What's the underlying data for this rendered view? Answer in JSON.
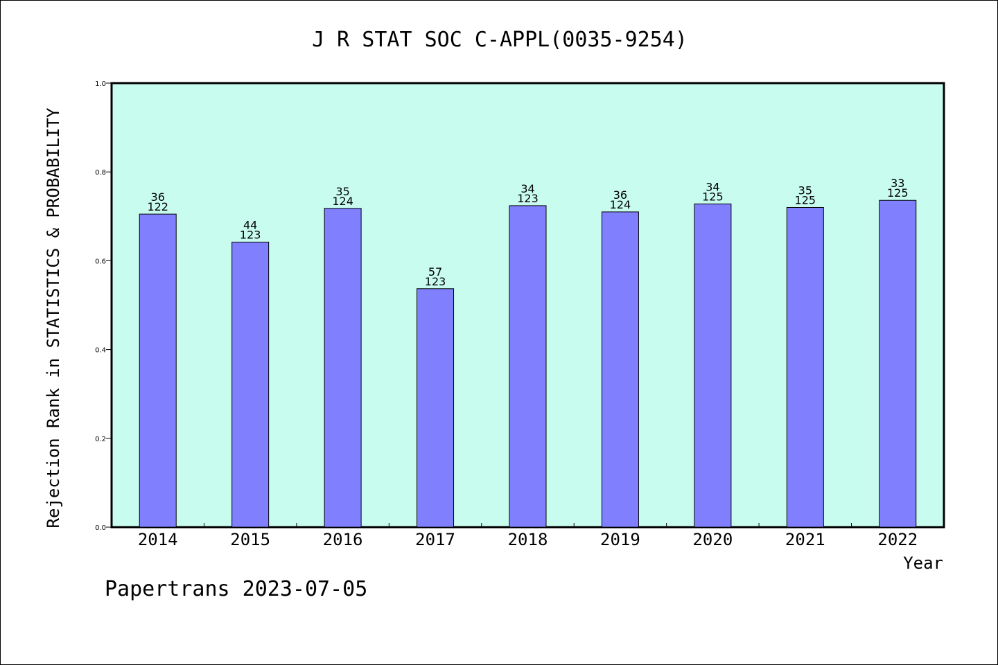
{
  "footer": {
    "text": "Papertrans 2023-07-05"
  },
  "colors": {
    "plot_background": "#c8fcee",
    "bar_fill": "#8080ff",
    "bar_stroke": "#000000",
    "axis": "#000000"
  },
  "chart_data": {
    "type": "bar",
    "title": "J R STAT SOC C-APPL(0035-9254)",
    "xlabel": "Year",
    "ylabel": "Rejection Rank in STATISTICS & PROBABILITY",
    "ylim": [
      0,
      1.0
    ],
    "yticks": [
      0.0,
      0.2,
      0.4,
      0.6,
      0.8,
      1.0
    ],
    "ytick_labels": [
      "0.0",
      "0.2",
      "0.4",
      "0.6",
      "0.8",
      "1.0"
    ],
    "grid": false,
    "categories": [
      "2014",
      "2015",
      "2016",
      "2017",
      "2018",
      "2019",
      "2020",
      "2021",
      "2022"
    ],
    "values": [
      0.705,
      0.642,
      0.718,
      0.537,
      0.724,
      0.71,
      0.728,
      0.72,
      0.736
    ],
    "label_top": [
      "36",
      "44",
      "35",
      "57",
      "34",
      "36",
      "34",
      "35",
      "33"
    ],
    "label_bottom": [
      "122",
      "123",
      "124",
      "123",
      "123",
      "124",
      "125",
      "125",
      "125"
    ]
  }
}
